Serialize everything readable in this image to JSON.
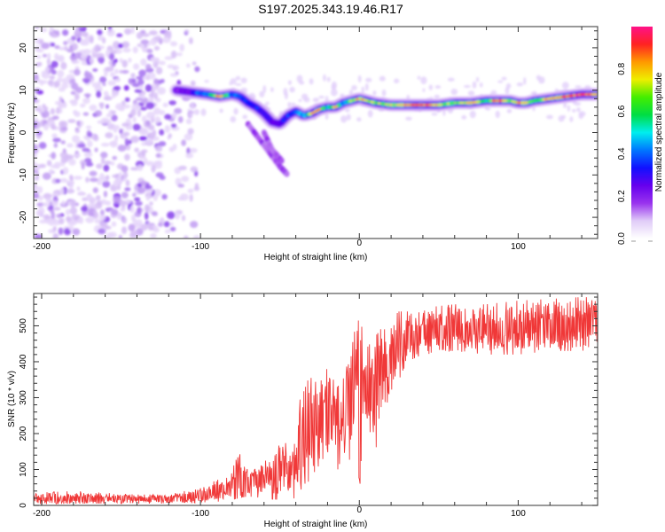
{
  "chart_data": [
    {
      "type": "heatmap",
      "title": "S197.2025.343.19.46.R17",
      "xlabel": "Height of straight line (km)",
      "ylabel": "Frequency (Hz)",
      "xlim": [
        -205,
        150
      ],
      "ylim": [
        -25,
        25
      ],
      "xticks": [
        -200,
        -100,
        0,
        100
      ],
      "yticks": [
        -20,
        -10,
        0,
        10,
        20
      ],
      "xtick_labels": [
        "-200",
        "-100",
        "0",
        "100"
      ],
      "ytick_labels": [
        "-20",
        "-10",
        "0",
        "10",
        "20"
      ],
      "noise_region_x": [
        -205,
        -110
      ],
      "ridge": {
        "description": "Dominant spectral ridge (frequency vs height) with peak normalized amplitude",
        "x": [
          -115,
          -105,
          -95,
          -88,
          -80,
          -75,
          -70,
          -65,
          -60,
          -55,
          -50,
          -45,
          -40,
          -35,
          -30,
          -25,
          -20,
          -15,
          -10,
          -5,
          0,
          5,
          10,
          20,
          30,
          40,
          50,
          60,
          70,
          80,
          85,
          90,
          95,
          100,
          105,
          110,
          120,
          130,
          140,
          150
        ],
        "frequency": [
          10,
          9.5,
          9,
          8.5,
          9,
          8.5,
          7,
          6,
          4.5,
          2.5,
          2,
          4,
          5,
          4,
          4.5,
          5.5,
          6,
          6,
          7,
          7.5,
          8,
          7.5,
          7,
          6.5,
          6.5,
          6.5,
          6.5,
          7,
          7,
          7.5,
          7.5,
          7.5,
          7.5,
          7,
          7,
          7.5,
          8,
          8.5,
          9,
          9
        ],
        "amplitude": [
          0.2,
          0.3,
          0.55,
          0.9,
          0.45,
          0.4,
          0.35,
          0.35,
          0.3,
          0.25,
          0.3,
          0.35,
          0.4,
          0.45,
          0.85,
          0.85,
          0.55,
          0.8,
          0.45,
          0.8,
          0.85,
          0.8,
          0.7,
          0.75,
          0.95,
          0.95,
          0.75,
          0.7,
          0.9,
          0.6,
          0.9,
          0.95,
          0.75,
          0.9,
          0.85,
          0.7,
          0.85,
          0.95,
          0.95,
          0.9
        ]
      },
      "branches": [
        {
          "x": [
            -70,
            -60,
            -50,
            -45
          ],
          "frequency": [
            2,
            -3,
            -8,
            -10
          ]
        },
        {
          "x": [
            -60,
            -55,
            -48
          ],
          "frequency": [
            0,
            -4,
            -7
          ]
        }
      ],
      "colorbar": {
        "label": "Normalized spectral amplitude",
        "range": [
          0,
          1
        ],
        "ticks": [
          0.0,
          0.2,
          0.4,
          0.6,
          0.8
        ],
        "tick_labels": [
          "0.0",
          "0.2",
          "0.4",
          "0.6",
          "0.8"
        ],
        "colors": [
          "#ffffff",
          "#e0ccf8",
          "#9933ee",
          "#6600ee",
          "#1111ff",
          "#0077ff",
          "#00eeee",
          "#00dd44",
          "#44ee00",
          "#eeee00",
          "#ff9900",
          "#ff2222",
          "#ff1188"
        ]
      }
    },
    {
      "type": "line",
      "xlabel": "Height of straight line (km)",
      "ylabel": "SNR (10 * v/v)",
      "xlim": [
        -205,
        150
      ],
      "ylim": [
        0,
        590
      ],
      "xticks": [
        -200,
        -100,
        0,
        100
      ],
      "yticks": [
        0,
        100,
        200,
        300,
        400,
        500
      ],
      "xtick_labels": [
        "-200",
        "-100",
        "0",
        "100"
      ],
      "ytick_labels": [
        "0",
        "100",
        "200",
        "300",
        "400",
        "500"
      ],
      "color": "#ee2222",
      "series": [
        {
          "name": "SNR",
          "envelope": {
            "x": [
              -205,
              -180,
              -160,
              -140,
              -120,
              -110,
              -100,
              -90,
              -80,
              -76,
              -70,
              -60,
              -50,
              -40,
              -37,
              -30,
              -25,
              -20,
              -15,
              -10,
              -5,
              -1,
              0,
              2,
              5,
              10,
              15,
              20,
              25,
              30,
              40,
              60,
              80,
              100,
              120,
              140,
              150
            ],
            "low": [
              3,
              5,
              5,
              5,
              5,
              5,
              8,
              10,
              15,
              20,
              25,
              20,
              15,
              20,
              10,
              15,
              20,
              30,
              80,
              150,
              120,
              250,
              20,
              200,
              80,
              150,
              250,
              320,
              350,
              400,
              420,
              430,
              420,
              420,
              430,
              430,
              440
            ],
            "high": [
              35,
              40,
              35,
              30,
              30,
              40,
              50,
              70,
              90,
              175,
              100,
              120,
              170,
              180,
              340,
              380,
              370,
              400,
              350,
              380,
              430,
              540,
              550,
              480,
              440,
              470,
              500,
              520,
              540,
              540,
              550,
              560,
              560,
              570,
              575,
              580,
              580
            ],
            "mean": [
              18,
              20,
              18,
              18,
              18,
              20,
              28,
              40,
              55,
              70,
              65,
              75,
              95,
              110,
              180,
              220,
              230,
              250,
              250,
              270,
              300,
              380,
              150,
              340,
              310,
              330,
              380,
              410,
              440,
              460,
              480,
              490,
              490,
              495,
              500,
              505,
              505
            ]
          }
        }
      ]
    }
  ]
}
